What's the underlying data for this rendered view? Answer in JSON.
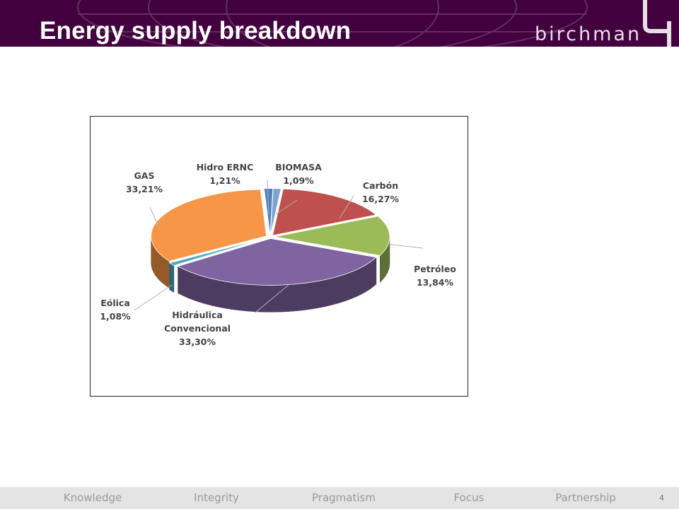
{
  "slide": {
    "title": "Energy supply breakdown",
    "brand": "birchman",
    "page_number": "4"
  },
  "footer": {
    "values": [
      "Knowledge",
      "Integrity",
      "Pragmatism",
      "Focus",
      "Partnership"
    ]
  },
  "colors": {
    "header_bg": "#42003f",
    "footer_bg": "#e4e4e4"
  },
  "chart_data": {
    "type": "pie",
    "style": "3d-exploded",
    "slices": [
      {
        "label": "Hidro ERNC",
        "value": 1.21,
        "value_text": "1,21%",
        "color": "#4f81bd"
      },
      {
        "label": "BIOMASA",
        "value": 1.09,
        "value_text": "1,09%",
        "color": "#7fa3d0"
      },
      {
        "label": "Carbón",
        "value": 16.27,
        "value_text": "16,27%",
        "color": "#c0504d"
      },
      {
        "label": "Petróleo",
        "value": 13.84,
        "value_text": "13,84%",
        "color": "#9bbb59"
      },
      {
        "label": "Hidráulica Convencional",
        "label_lines": [
          "Hidráulica",
          "Convencional"
        ],
        "value": 33.3,
        "value_text": "33,30%",
        "color": "#8064a2"
      },
      {
        "label": "Eólica",
        "value": 1.08,
        "value_text": "1,08%",
        "color": "#4bacc6"
      },
      {
        "label": "GAS",
        "value": 33.21,
        "value_text": "33,21%",
        "color": "#f79646"
      }
    ]
  }
}
